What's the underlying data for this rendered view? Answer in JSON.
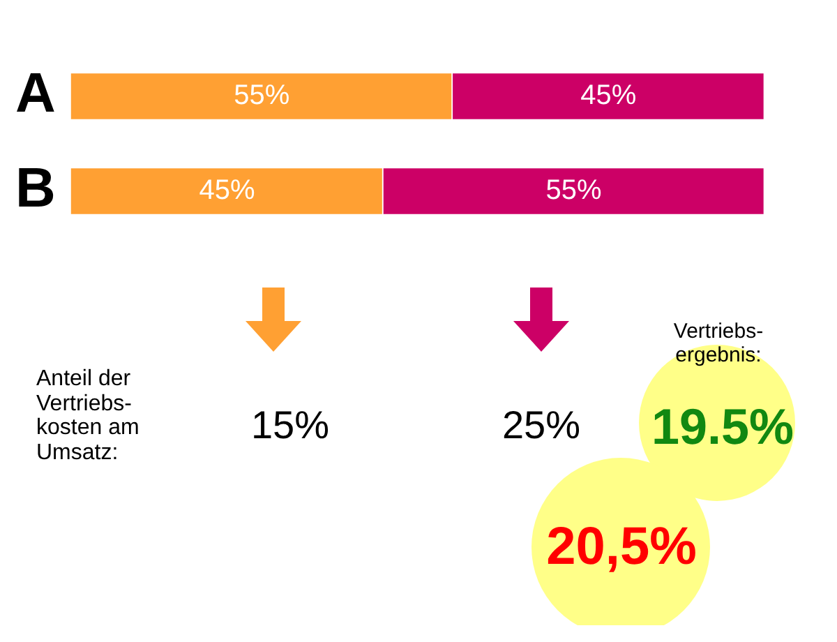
{
  "chart_data": {
    "type": "bar",
    "orientation": "horizontal",
    "stacked": true,
    "categories": [
      "A",
      "B"
    ],
    "series": [
      {
        "color": "#ffa033",
        "values": [
          55,
          45
        ],
        "value_labels": [
          "55%",
          "45%"
        ]
      },
      {
        "color": "#cc0066",
        "values": [
          45,
          55
        ],
        "value_labels": [
          "45%",
          "55%"
        ]
      }
    ],
    "grid": false,
    "legend": false,
    "tick_labels": "y",
    "annotations": [
      "Anteil der Vertriebs-kosten am Umsatz:",
      "15%",
      "25%",
      "Vertriebs-ergebnis:",
      "19.5%",
      "20,5%"
    ]
  }
}
